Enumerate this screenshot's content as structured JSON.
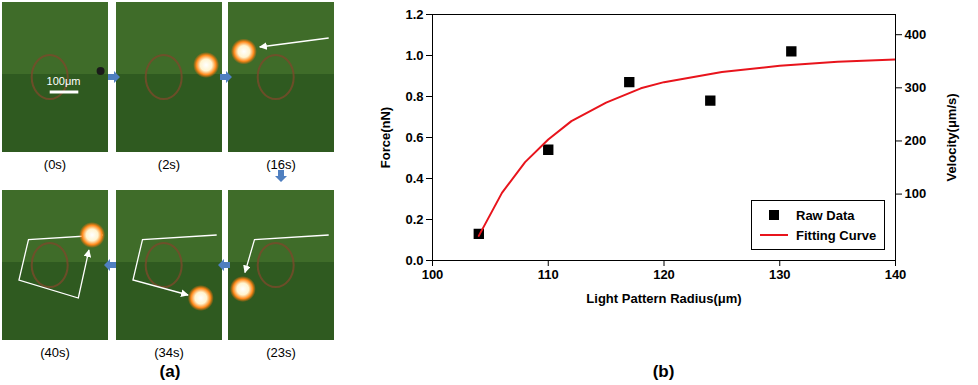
{
  "figure": {
    "panels": [
      "(a)",
      "(b)"
    ],
    "frames": [
      "(0s)",
      "(2s)",
      "(16s)",
      "(23s)",
      "(34s)",
      "(40s)"
    ],
    "scale_bar": "100μm"
  },
  "chart_data": {
    "type": "scatter",
    "x_label": "Light Pattern Radius(μm)",
    "y_label": "Force(nN)",
    "y2_label": "Velocity(μm/s)",
    "xlim": [
      100,
      140
    ],
    "xticks": [
      100,
      110,
      120,
      130,
      140
    ],
    "ylim": [
      0,
      1.2
    ],
    "yticks": [
      {
        "value": 0,
        "label": "0.0"
      },
      0.2,
      0.4,
      0.6,
      0.8,
      {
        "value": 1,
        "label": "1.0"
      },
      1.2
    ],
    "y2lim": [
      -25,
      438
    ],
    "y2ticks": [
      100,
      200,
      300,
      400
    ],
    "legend": "lower right",
    "series": [
      {
        "name": "Raw Data",
        "type": "scatter",
        "marker": "square",
        "color": "#000000",
        "x": [
          104,
          110,
          117,
          124,
          131
        ],
        "values": [
          0.13,
          0.54,
          0.87,
          0.78,
          1.02
        ]
      },
      {
        "name": "Fitting Curve",
        "type": "line",
        "color": "#e8141c",
        "x": [
          104,
          106,
          108,
          110,
          112,
          115,
          118,
          120,
          125,
          130,
          135,
          140
        ],
        "values": [
          0.12,
          0.33,
          0.48,
          0.59,
          0.68,
          0.77,
          0.84,
          0.87,
          0.92,
          0.95,
          0.97,
          0.98
        ]
      }
    ]
  }
}
